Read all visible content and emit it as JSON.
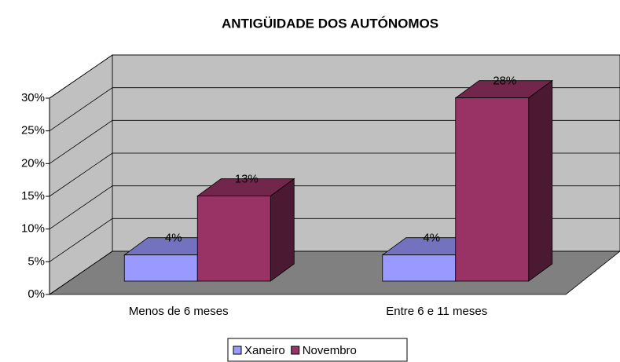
{
  "chart_data": {
    "type": "bar3d",
    "title": "ANTIGÜIDADE DOS AUTÓNOMOS",
    "categories": [
      "Menos de 6 meses",
      "Entre 6 e 11 meses"
    ],
    "series": [
      {
        "name": "Xaneiro",
        "color": "#9999ff",
        "values": [
          4,
          4
        ],
        "value_labels": [
          "4%",
          "4%"
        ]
      },
      {
        "name": "Novembro",
        "color": "#993366",
        "values": [
          13,
          28
        ],
        "value_labels": [
          "13%",
          "28%"
        ]
      }
    ],
    "ylim": [
      0,
      30
    ],
    "yticks": [
      {
        "value": 0,
        "label": "0%"
      },
      {
        "value": 5,
        "label": "5%"
      },
      {
        "value": 10,
        "label": "10%"
      },
      {
        "value": 15,
        "label": "15%"
      },
      {
        "value": 20,
        "label": "20%"
      },
      {
        "value": 25,
        "label": "25%"
      },
      {
        "value": 30,
        "label": "30%"
      }
    ],
    "grid": true,
    "legend": "bottom"
  }
}
